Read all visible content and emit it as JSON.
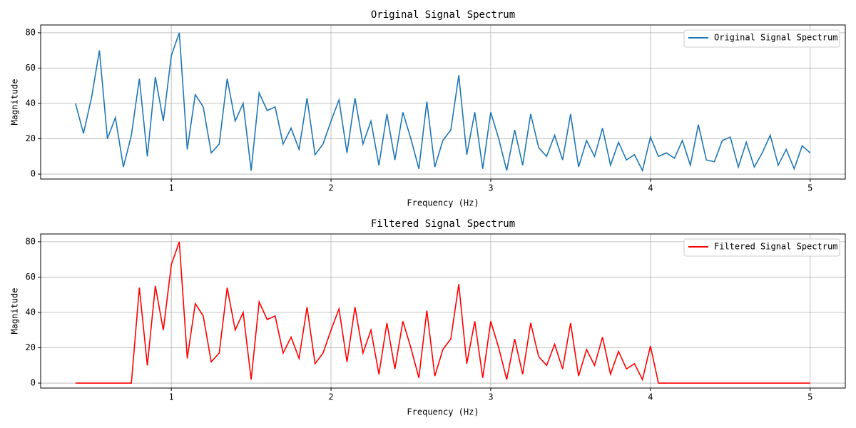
{
  "chart_data": [
    {
      "type": "line",
      "title": "Original Signal Spectrum",
      "x_label": "Frequency (Hz)",
      "y_label": "Magnitude",
      "x": [
        0.4,
        0.45,
        0.5,
        0.55,
        0.6,
        0.65,
        0.7,
        0.75,
        0.8,
        0.85,
        0.9,
        0.95,
        1.0,
        1.05,
        1.1,
        1.15,
        1.2,
        1.25,
        1.3,
        1.35,
        1.4,
        1.45,
        1.5,
        1.55,
        1.6,
        1.65,
        1.7,
        1.75,
        1.8,
        1.85,
        1.9,
        1.95,
        2.0,
        2.05,
        2.1,
        2.15,
        2.2,
        2.25,
        2.3,
        2.35,
        2.4,
        2.45,
        2.5,
        2.55,
        2.6,
        2.65,
        2.7,
        2.75,
        2.8,
        2.85,
        2.9,
        2.95,
        3.0,
        3.05,
        3.1,
        3.15,
        3.2,
        3.25,
        3.3,
        3.35,
        3.4,
        3.45,
        3.5,
        3.55,
        3.6,
        3.65,
        3.7,
        3.75,
        3.8,
        3.85,
        3.9,
        3.95,
        4.0,
        4.05,
        4.1,
        4.15,
        4.2,
        4.25,
        4.3,
        4.35,
        4.4,
        4.45,
        4.5,
        4.55,
        4.6,
        4.65,
        4.7,
        4.75,
        4.8,
        4.85,
        4.9,
        4.95,
        5.0
      ],
      "series": [
        {
          "name": "Original Signal Spectrum",
          "color": "#1f77b4",
          "values": [
            40,
            23,
            43,
            70,
            20,
            32,
            4,
            22,
            54,
            10,
            55,
            30,
            67,
            80,
            14,
            45,
            38,
            12,
            17,
            54,
            30,
            40,
            2,
            46,
            36,
            38,
            17,
            26,
            14,
            43,
            11,
            17,
            30,
            42,
            12,
            43,
            17,
            30,
            5,
            34,
            8,
            35,
            20,
            3,
            41,
            4,
            19,
            25,
            56,
            11,
            35,
            3,
            35,
            20,
            2,
            25,
            5,
            34,
            15,
            10,
            22,
            8,
            34,
            4,
            19,
            10,
            26,
            5,
            18,
            8,
            11,
            2,
            21,
            10,
            12,
            9,
            19,
            5,
            28,
            8,
            7,
            19,
            21,
            4,
            18,
            4,
            12,
            22,
            5,
            14,
            3,
            16,
            12
          ]
        }
      ],
      "xlim": [
        0.182,
        5.22
      ],
      "ylim": [
        -2.8,
        84.4
      ],
      "xticks": [
        1,
        2,
        3,
        4,
        5
      ],
      "yticks": [
        0,
        20,
        40,
        60,
        80
      ],
      "grid": true,
      "legend": "upper right"
    },
    {
      "type": "line",
      "title": "Filtered Signal Spectrum",
      "x_label": "Frequency (Hz)",
      "y_label": "Magnitude",
      "x": [
        0.4,
        0.45,
        0.5,
        0.55,
        0.6,
        0.65,
        0.7,
        0.75,
        0.8,
        0.85,
        0.9,
        0.95,
        1.0,
        1.05,
        1.1,
        1.15,
        1.2,
        1.25,
        1.3,
        1.35,
        1.4,
        1.45,
        1.5,
        1.55,
        1.6,
        1.65,
        1.7,
        1.75,
        1.8,
        1.85,
        1.9,
        1.95,
        2.0,
        2.05,
        2.1,
        2.15,
        2.2,
        2.25,
        2.3,
        2.35,
        2.4,
        2.45,
        2.5,
        2.55,
        2.6,
        2.65,
        2.7,
        2.75,
        2.8,
        2.85,
        2.9,
        2.95,
        3.0,
        3.05,
        3.1,
        3.15,
        3.2,
        3.25,
        3.3,
        3.35,
        3.4,
        3.45,
        3.5,
        3.55,
        3.6,
        3.65,
        3.7,
        3.75,
        3.8,
        3.85,
        3.9,
        3.95,
        4.0,
        4.05,
        4.1,
        4.15,
        4.2,
        4.25,
        4.3,
        4.35,
        4.4,
        4.45,
        4.5,
        4.55,
        4.6,
        4.65,
        4.7,
        4.75,
        4.8,
        4.85,
        4.9,
        4.95,
        5.0
      ],
      "series": [
        {
          "name": "Filtered Signal Spectrum",
          "color": "#ff0000",
          "values": [
            0,
            0,
            0,
            0,
            0,
            0,
            0,
            0,
            54,
            10,
            55,
            30,
            67,
            80,
            14,
            45,
            38,
            12,
            17,
            54,
            30,
            40,
            2,
            46,
            36,
            38,
            17,
            26,
            14,
            43,
            11,
            17,
            30,
            42,
            12,
            43,
            17,
            30,
            5,
            34,
            8,
            35,
            20,
            3,
            41,
            4,
            19,
            25,
            56,
            11,
            35,
            3,
            35,
            20,
            2,
            25,
            5,
            34,
            15,
            10,
            22,
            8,
            34,
            4,
            19,
            10,
            26,
            5,
            18,
            8,
            11,
            2,
            21,
            0,
            0,
            0,
            0,
            0,
            0,
            0,
            0,
            0,
            0,
            0,
            0,
            0,
            0,
            0,
            0,
            0,
            0,
            0,
            0
          ]
        }
      ],
      "xlim": [
        0.182,
        5.22
      ],
      "ylim": [
        -2.8,
        84.4
      ],
      "xticks": [
        1,
        2,
        3,
        4,
        5
      ],
      "yticks": [
        0,
        20,
        40,
        60,
        80
      ],
      "grid": true,
      "legend": "upper right"
    }
  ]
}
